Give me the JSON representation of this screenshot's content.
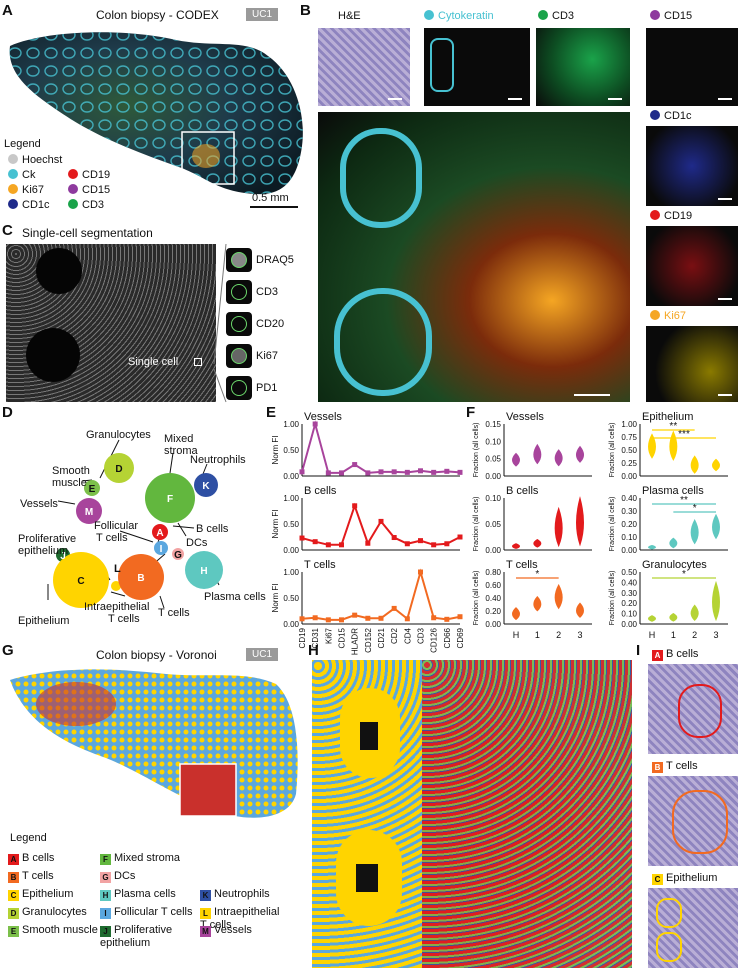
{
  "panels": {
    "A": "A",
    "B": "B",
    "C": "C",
    "D": "D",
    "E": "E",
    "F": "F",
    "G": "G",
    "H": "H",
    "I": "I"
  },
  "panelA": {
    "title": "Colon biopsy - CODEX",
    "badge": "UC1",
    "legend_title": "Legend",
    "legend": [
      {
        "label": "Hoechst",
        "color": "#c8c8c8"
      },
      {
        "label": "CD19",
        "color": "#e31a1c"
      },
      {
        "label": "Ck",
        "color": "#47c1d1"
      },
      {
        "label": "CD15",
        "color": "#8e3a9e"
      },
      {
        "label": "Ki67",
        "color": "#f5a623"
      },
      {
        "label": "CD3",
        "color": "#1aa34a"
      },
      {
        "label": "CD1c",
        "color": "#1f2a8a"
      }
    ],
    "scale": "0.5 mm"
  },
  "panelB": {
    "channels_top": [
      {
        "label": "H&E",
        "color": ""
      },
      {
        "label": "Cytokeratin",
        "color": "#47c1d1"
      },
      {
        "label": "CD3",
        "color": "#1aa34a"
      }
    ],
    "channels_right": [
      {
        "label": "CD15",
        "color": "#8e3a9e"
      },
      {
        "label": "CD1c",
        "color": "#1f2a8a"
      },
      {
        "label": "CD19",
        "color": "#e31a1c"
      },
      {
        "label": "Ki67",
        "color": "#f5a623"
      }
    ]
  },
  "panelC": {
    "title": "Single-cell segmentation",
    "single_cell": "Single cell",
    "markers": [
      "DRAQ5",
      "CD3",
      "CD20",
      "Ki67",
      "PD1"
    ]
  },
  "panelD": {
    "nodes": [
      {
        "letter": "D",
        "label": "Granulocytes",
        "color": "#b5d334"
      },
      {
        "letter": "E",
        "label": "Smooth muscle",
        "color": "#7cc04a"
      },
      {
        "letter": "F",
        "label": "Mixed stroma",
        "color": "#62b73e"
      },
      {
        "letter": "K",
        "label": "Neutrophils",
        "color": "#2e4fa3"
      },
      {
        "letter": "M",
        "label": "Vessels",
        "color": "#a8449c"
      },
      {
        "letter": "A",
        "label": "B cells",
        "color": "#e31a1c"
      },
      {
        "letter": "G",
        "label": "DCs",
        "color": "#f2a3a3"
      },
      {
        "letter": "I",
        "label": "Follicular T cells",
        "color": "#5aa7df"
      },
      {
        "letter": "J",
        "label": "Proliferative epithelium",
        "color": "#1e6b2f"
      },
      {
        "letter": "C",
        "label": "Epithelium",
        "color": "#ffd400"
      },
      {
        "letter": "L",
        "label": "Intraepithelial T cells",
        "color": "#ffd400"
      },
      {
        "letter": "B",
        "label": "T cells",
        "color": "#f26a21"
      },
      {
        "letter": "H",
        "label": "Plasma cells",
        "color": "#5ec8c0"
      }
    ],
    "texts": {
      "granulocytes": "Granulocytes",
      "mixed1": "Mixed",
      "mixed2": "stroma",
      "smooth1": "Smooth",
      "smooth2": "muscle",
      "neutrophils": "Neutrophils",
      "vessels": "Vessels",
      "bcells": "B cells",
      "follicular1": "Follicular",
      "follicular2": "T cells",
      "dcs": "DCs",
      "prolif1": "Proliferative",
      "prolif2": "epithelium",
      "epithelium": "Epithelium",
      "intra1": "Intraepithelial",
      "intra2": "T cells",
      "tcells": "T cells",
      "plasma": "Plasma cells",
      "lL": "L"
    }
  },
  "chart_data": [
    {
      "type": "line",
      "panel": "E",
      "ylabel": "Norm FI",
      "categories": [
        "CD19",
        "CD31",
        "Ki67",
        "CD15",
        "HLADR",
        "CD152",
        "CD21",
        "CD2",
        "CD4",
        "CD3",
        "CD126",
        "CD66",
        "CD69"
      ],
      "ylim": [
        0,
        1
      ],
      "yticks": [
        "0.00",
        "0.50",
        "1.00"
      ],
      "series": [
        {
          "name": "Vessels",
          "color": "#a8449c",
          "values": [
            0.08,
            1.0,
            0.06,
            0.06,
            0.22,
            0.06,
            0.08,
            0.08,
            0.07,
            0.1,
            0.07,
            0.09,
            0.07
          ]
        },
        {
          "name": "B cells",
          "color": "#e31a1c",
          "values": [
            0.23,
            0.16,
            0.1,
            0.1,
            0.85,
            0.13,
            0.55,
            0.24,
            0.12,
            0.18,
            0.1,
            0.12,
            0.25
          ]
        },
        {
          "name": "T cells",
          "color": "#f26a21",
          "values": [
            0.1,
            0.12,
            0.08,
            0.08,
            0.17,
            0.11,
            0.11,
            0.3,
            0.1,
            1.0,
            0.12,
            0.09,
            0.14
          ]
        }
      ]
    },
    {
      "type": "violin",
      "panel": "F",
      "ylabel": "Fraction (all cells)",
      "categories": [
        "H",
        "1",
        "2",
        "3"
      ],
      "panels": [
        {
          "name": "Vessels",
          "color": "#a8449c",
          "ylim": [
            0,
            0.15
          ],
          "yticks": [
            "0.00",
            "0.05",
            "0.10",
            "0.15"
          ],
          "medians": [
            0.045,
            0.06,
            0.05,
            0.06
          ],
          "spread": [
            0.02,
            0.03,
            0.025,
            0.025
          ]
        },
        {
          "name": "B cells",
          "color": "#e31a1c",
          "ylim": [
            0,
            0.1
          ],
          "yticks": [
            "0.00",
            "0.05",
            "0.10"
          ],
          "medians": [
            0.007,
            0.012,
            0.04,
            0.05
          ],
          "spread": [
            0.005,
            0.008,
            0.04,
            0.05
          ]
        },
        {
          "name": "T cells",
          "color": "#f26a21",
          "ylim": [
            0,
            0.8
          ],
          "yticks": [
            "0.00",
            "0.20",
            "0.40",
            "0.60",
            "0.80"
          ],
          "medians": [
            0.15,
            0.3,
            0.4,
            0.2
          ],
          "spread": [
            0.1,
            0.12,
            0.2,
            0.12
          ],
          "sig": [
            {
              "from": 0,
              "to": 2,
              "label": "*"
            }
          ]
        },
        {
          "name": "Epithelium",
          "color": "#ffd400",
          "ylim": [
            0,
            1
          ],
          "yticks": [
            "0.00",
            "0.25",
            "0.50",
            "0.75",
            "1.00"
          ],
          "medians": [
            0.55,
            0.55,
            0.2,
            0.2
          ],
          "spread": [
            0.25,
            0.3,
            0.18,
            0.12
          ],
          "sig": [
            {
              "from": 0,
              "to": 2,
              "label": "**"
            },
            {
              "from": 0,
              "to": 3,
              "label": "***"
            }
          ]
        },
        {
          "name": "Plasma cells",
          "color": "#5ec8c0",
          "ylim": [
            0,
            0.4
          ],
          "yticks": [
            "0.00",
            "0.10",
            "0.20",
            "0.30",
            "0.40"
          ],
          "medians": [
            0.02,
            0.05,
            0.13,
            0.17
          ],
          "spread": [
            0.015,
            0.04,
            0.1,
            0.1
          ],
          "sig": [
            {
              "from": 0,
              "to": 3,
              "label": "**"
            },
            {
              "from": 1,
              "to": 3,
              "label": "*"
            }
          ]
        },
        {
          "name": "Granulocytes",
          "color": "#b5d334",
          "ylim": [
            0,
            0.5
          ],
          "yticks": [
            "0.00",
            "0.10",
            "0.20",
            "0.30",
            "0.40",
            "0.50"
          ],
          "medians": [
            0.05,
            0.06,
            0.1,
            0.2
          ],
          "spread": [
            0.03,
            0.04,
            0.08,
            0.2
          ],
          "sig": [
            {
              "from": 0,
              "to": 3,
              "label": "*"
            }
          ]
        }
      ]
    }
  ],
  "panelG": {
    "title": "Colon biopsy - Voronoi",
    "badge": "UC1",
    "legend_title": "Legend",
    "legend": [
      {
        "letter": "A",
        "label": "B cells",
        "color": "#e31a1c"
      },
      {
        "letter": "F",
        "label": "Mixed stroma",
        "color": "#62b73e"
      },
      {
        "letter": "B",
        "label": "T cells",
        "color": "#f26a21"
      },
      {
        "letter": "G",
        "label": "DCs",
        "color": "#f2a3a3"
      },
      {
        "letter": "C",
        "label": "Epithelium",
        "color": "#ffd400"
      },
      {
        "letter": "H",
        "label": "Plasma cells",
        "color": "#5ec8c0"
      },
      {
        "letter": "K",
        "label": "Neutrophils",
        "color": "#2e4fa3"
      },
      {
        "letter": "D",
        "label": "Granulocytes",
        "color": "#b5d334"
      },
      {
        "letter": "I",
        "label": "Follicular T cells",
        "color": "#5aa7df"
      },
      {
        "letter": "L",
        "label": "Intraepithelial T cells",
        "color": "#ffd400"
      },
      {
        "letter": "E",
        "label": "Smooth muscle",
        "color": "#7cc04a"
      },
      {
        "letter": "J",
        "label": "Proliferative epithelium",
        "color": "#1e6b2f"
      },
      {
        "letter": "M",
        "label": "Vessels",
        "color": "#a8449c"
      }
    ]
  },
  "panelI": {
    "items": [
      {
        "letter": "A",
        "label": "B cells",
        "color": "#e31a1c"
      },
      {
        "letter": "B",
        "label": "T cells",
        "color": "#f26a21"
      },
      {
        "letter": "C",
        "label": "Epithelium",
        "color": "#ffd400"
      }
    ]
  }
}
